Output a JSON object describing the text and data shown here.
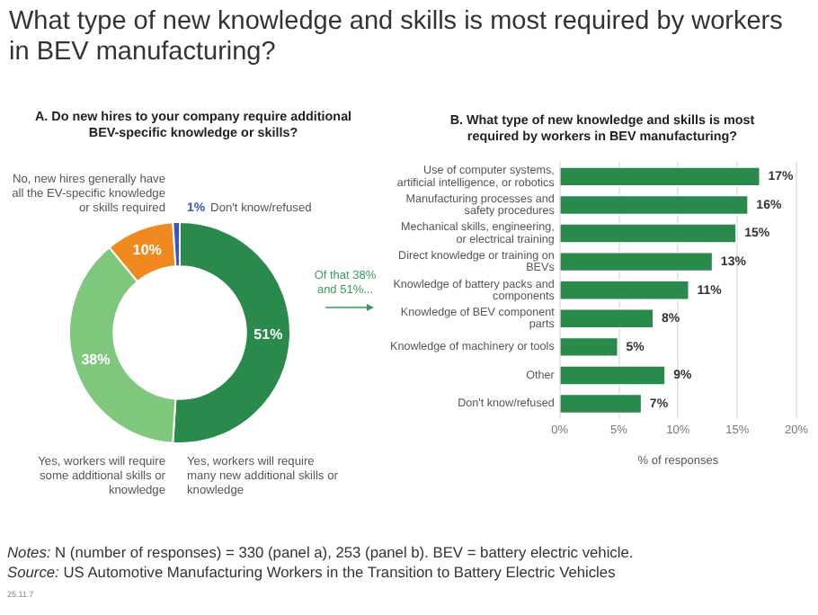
{
  "chart_data": [
    {
      "type": "donut",
      "title": "What type of new knowledge and skills is most required by workers in BEV manufacturing?",
      "subtitle": "A. Do new hires to your company require additional BEV-specific knowledge or skills?",
      "categories": [
        "Yes, workers will require many new additional skills or knowledge",
        "Yes, workers will require some additional skills or knowledge",
        "No, new hires generally have all the EV-specific knowledge or skills required",
        "Don't know/refused"
      ],
      "values": [
        51,
        38,
        10,
        1
      ],
      "colors": [
        "#2a8a4c",
        "#80c77e",
        "#f0891f",
        "#3a56c0"
      ],
      "value_labels": [
        "51%",
        "38%",
        "10%",
        "1%"
      ]
    },
    {
      "type": "bar",
      "orientation": "horizontal",
      "title": "B. What type of new knowledge and skills is most required by workers in BEV manufacturing?",
      "xlabel": "% of responses",
      "categories": [
        "Use of computer systems, artificial intelligence, or robotics",
        "Manufacturing processes and safety procedures",
        "Mechanical skills, engineering, or electrical training",
        "Direct knowledge or training on BEVs",
        "Knowledge of battery packs and components",
        "Knowledge of BEV component parts",
        "Knowledge of machinery or tools",
        "Other",
        "Don't know/refused"
      ],
      "values": [
        17,
        16,
        15,
        13,
        11,
        8,
        5,
        9,
        7
      ],
      "color": "#2a8a4c",
      "value_labels": [
        "17%",
        "16%",
        "15%",
        "13%",
        "11%",
        "8%",
        "5%",
        "9%",
        "7%"
      ],
      "xlim": [
        0,
        20
      ],
      "xticks": [
        {
          "value": 0,
          "label": "0%"
        },
        {
          "value": 5,
          "label": "5%"
        },
        {
          "value": 10,
          "label": "10%"
        },
        {
          "value": 15,
          "label": "15%"
        },
        {
          "value": 20,
          "label": "20%"
        }
      ],
      "grid": "x",
      "annotations": [
        "Of that 38% and 51%...",
        "Notes: N (number of responses) = 330 (panel a), 253 (panel b). BEV = battery electric vehicle.",
        "Source: US Automotive Manufacturing Workers in the Transition to Battery Electric Vehicles",
        "25.11.7"
      ]
    }
  ]
}
